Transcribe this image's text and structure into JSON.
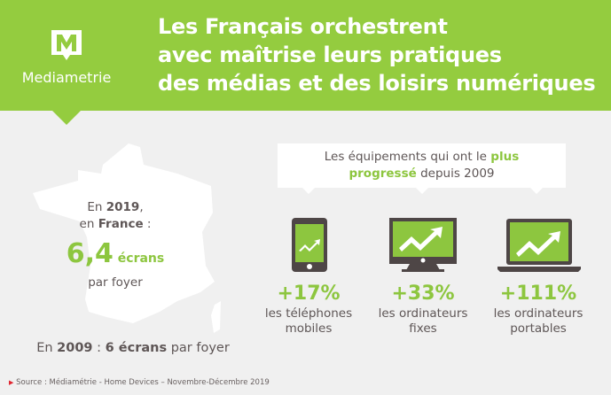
{
  "header": {
    "logo_text": "Mediametrie",
    "title_lines": [
      "Les Français orchestrent",
      "avec maîtrise leurs pratiques",
      "des médias et des loisirs numériques"
    ]
  },
  "france": {
    "line1_pre": "En ",
    "line1_year": "2019",
    "line1_post": ",",
    "line2_pre": "en ",
    "line2_country": "France",
    "line2_post": " :",
    "value": "6,4",
    "unit": "écrans",
    "per": "par foyer"
  },
  "year2009": {
    "pre": "En ",
    "year": "2009",
    "sep": " : ",
    "value": "6 écrans",
    "post": " par foyer"
  },
  "bubble": {
    "pre": "Les équipements qui ont le ",
    "highlight1": "plus",
    "highlight2": "progressé",
    "post": " depuis 2009"
  },
  "devices": [
    {
      "icon": "smartphone-icon",
      "pct": "+17%",
      "label1": "les téléphones",
      "label2": "mobiles"
    },
    {
      "icon": "desktop-monitor-icon",
      "pct": "+33%",
      "label1": "les ordinateurs",
      "label2": "fixes"
    },
    {
      "icon": "laptop-icon",
      "pct": "+111%",
      "label1": "les ordinateurs",
      "label2": "portables"
    }
  ],
  "source": "Source : Médiamétrie - Home Devices – Novembre-Décembre 2019",
  "colors": {
    "brand_green": "#94cc3f",
    "text_gray": "#5e5656",
    "source_marker": "#e0242f"
  }
}
